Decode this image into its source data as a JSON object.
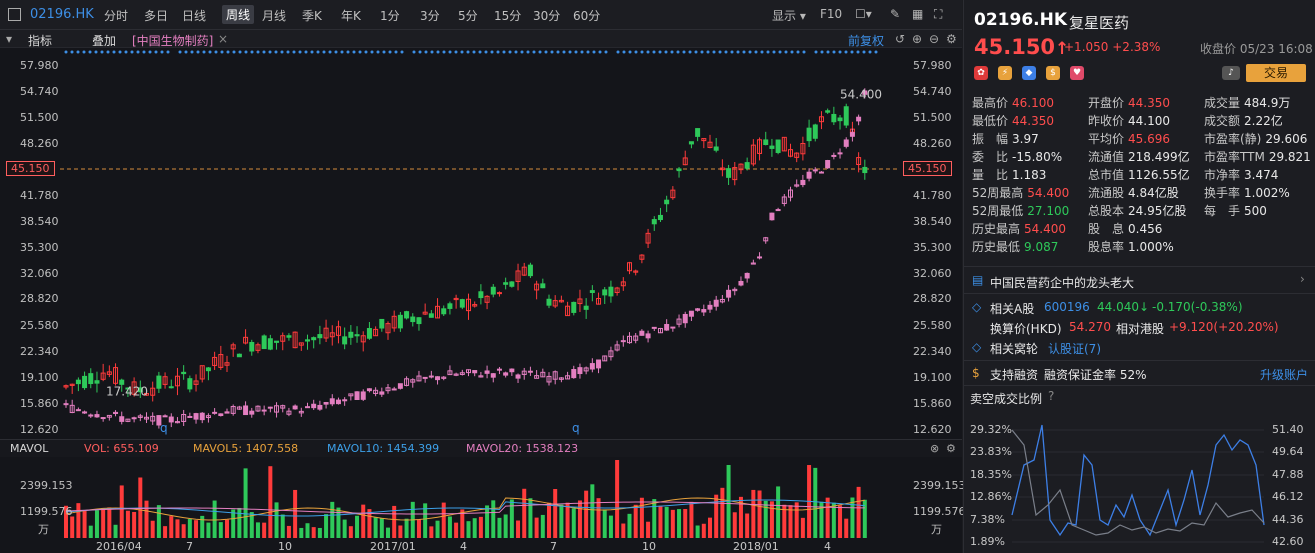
{
  "toolbar": {
    "symbol": "02196.HK",
    "periods": [
      "分时",
      "多日",
      "日线",
      "周线",
      "月线",
      "季K",
      "年K",
      "1分",
      "3分",
      "5分",
      "15分",
      "30分",
      "60分"
    ],
    "active_period": "周线",
    "display_label": "显示",
    "f10_label": "F10"
  },
  "indicator_bar": {
    "indicator_label": "指标",
    "overlay_label": "叠加",
    "overlay_item": "[中国生物制药]",
    "close_mark": "×",
    "adjust_label": "前复权"
  },
  "price_axis": {
    "ticks": [
      "57.980",
      "54.740",
      "51.500",
      "48.260",
      "45.150",
      "41.780",
      "38.540",
      "35.300",
      "32.060",
      "28.820",
      "25.580",
      "22.340",
      "19.100",
      "15.860",
      "12.620"
    ],
    "current": "45.150"
  },
  "annotations": {
    "high_marker": "54.400",
    "low_marker": "17.420",
    "q_marker": "q"
  },
  "volume": {
    "title": "MAVOL",
    "vol": "VOL: 655.109",
    "ma5": "MAVOL5: 1407.558",
    "ma10": "MAVOL10: 1454.399",
    "ma20": "MAVOL20: 1538.123",
    "ticks": [
      "2399.153",
      "1199.576",
      "万"
    ]
  },
  "x_axis": [
    "2016/04",
    "7",
    "10",
    "2017/01",
    "4",
    "7",
    "10",
    "2018/01",
    "4"
  ],
  "colors": {
    "up": "#ff3b3b",
    "down": "#2ec95a",
    "overlay": "#e37fc0",
    "accent": "#3d8fe6"
  },
  "quote": {
    "code": "02196.HK",
    "name": "复星医药",
    "price": "45.150",
    "arrow": "↑",
    "change": "+1.050",
    "change_pct": "+2.38%",
    "close_time": "收盘价 05/23 16:08",
    "trade_button": "交易"
  },
  "stats": [
    [
      {
        "k": "最高价",
        "v": "46.100",
        "c": "red"
      },
      {
        "k": "开盘价",
        "v": "44.350",
        "c": "red"
      },
      {
        "k": "成交量",
        "v": "484.9万",
        "c": "white"
      }
    ],
    [
      {
        "k": "最低价",
        "v": "44.350",
        "c": "red"
      },
      {
        "k": "昨收价",
        "v": "44.100",
        "c": "white"
      },
      {
        "k": "成交额",
        "v": "2.22亿",
        "c": "white"
      }
    ],
    [
      {
        "k": "振　幅",
        "v": "3.97",
        "c": "white"
      },
      {
        "k": "平均价",
        "v": "45.696",
        "c": "red"
      },
      {
        "k": "市盈率(静)",
        "v": "29.606",
        "c": "white"
      }
    ],
    [
      {
        "k": "委　比",
        "v": "-15.80%",
        "c": "white"
      },
      {
        "k": "流通值",
        "v": "218.499亿",
        "c": "white"
      },
      {
        "k": "市盈率TTM",
        "v": "29.821",
        "c": "white"
      }
    ],
    [
      {
        "k": "量　比",
        "v": "1.183",
        "c": "white"
      },
      {
        "k": "总市值",
        "v": "1126.55亿",
        "c": "white"
      },
      {
        "k": "市净率",
        "v": "3.474",
        "c": "white"
      }
    ],
    [
      {
        "k": "52周最高",
        "v": "54.400",
        "c": "red"
      },
      {
        "k": "流通股",
        "v": "4.84亿股",
        "c": "white"
      },
      {
        "k": "换手率",
        "v": "1.002%",
        "c": "white"
      }
    ],
    [
      {
        "k": "52周最低",
        "v": "27.100",
        "c": "green"
      },
      {
        "k": "总股本",
        "v": "24.95亿股",
        "c": "white"
      },
      {
        "k": "每　手",
        "v": "500",
        "c": "white"
      }
    ],
    [
      {
        "k": "历史最高",
        "v": "54.400",
        "c": "red"
      },
      {
        "k": "股　息",
        "v": "0.456",
        "c": "white"
      },
      {
        "k": "",
        "v": "",
        "c": "white"
      }
    ],
    [
      {
        "k": "历史最低",
        "v": "9.087",
        "c": "green"
      },
      {
        "k": "股息率",
        "v": "1.000%",
        "c": "white"
      },
      {
        "k": "",
        "v": "",
        "c": "white"
      }
    ]
  ],
  "news": "中国民营药企中的龙头老大",
  "related_a": {
    "label": "相关A股",
    "code": "600196",
    "price": "44.040",
    "arrow": "↓",
    "change": "-0.170(-0.38%)"
  },
  "converted": {
    "label": "换算价(HKD)",
    "value": "54.270",
    "rel_label": "相对港股",
    "rel_value": "+9.120(+20.20%)"
  },
  "warrant": {
    "label": "相关窝轮",
    "link": "认股证(7)"
  },
  "margin": {
    "label": "支持融资",
    "text": "融资保证金率 52%",
    "upgrade": "升级账户"
  },
  "short_ratio": {
    "title": "卖空成交比例",
    "left_ticks": [
      "29.32%",
      "23.83%",
      "18.35%",
      "12.86%",
      "7.38%",
      "1.89%"
    ],
    "right_ticks": [
      "51.40",
      "49.64",
      "47.88",
      "46.12",
      "44.36",
      "42.60"
    ]
  }
}
